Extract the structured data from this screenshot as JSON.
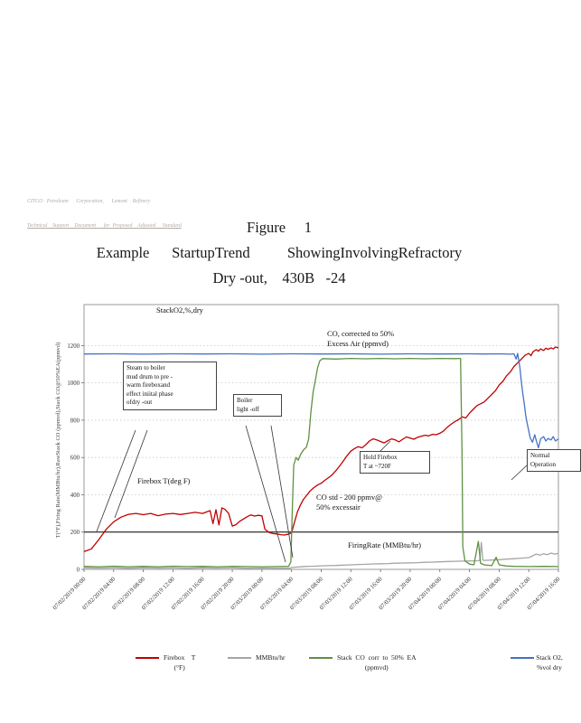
{
  "doc_header": {
    "line1": "CITGO   Petroleum      Corporation,      Lemont    Refinery",
    "line2": "Technical    Support    Document      for  Proposed    Adjusted     Standard"
  },
  "title": {
    "line1": "Figure     1",
    "line2": "Example      StartupTrend          ShowingInvolvingRefractory",
    "line3": "Dry -out,    430B   -24"
  },
  "plot_labels": {
    "stack_o2": "StackO2,%,dry",
    "co_corrected": "CO, corrected     to  50%\nExcess   Air  (ppmvd)",
    "firebox": "Firebox     T(deg   F)",
    "co_std": "CO  std  - 200    ppmv@\n50%   excessair",
    "firing_rate": "FiringRate     (MMBtu/hr)"
  },
  "annotations": {
    "steam_note": "Steam    to boiler\nmud   drum    to pre -\nwarm    fireboxand\neffect    iniital   phase\nofdry   -out",
    "boiler_note": "Boiler\nlight -off",
    "hold_note": "Hold   Firebox\nT at   ~720F",
    "normal_note": "Normal\nOperation"
  },
  "legend": {
    "items": [
      {
        "label": "Firebox    T",
        "sublabel": "(°F)",
        "color": "#C00000"
      },
      {
        "label": "MMBtu/hr",
        "sublabel": "",
        "color": "#A5A5A5"
      },
      {
        "label": "Stack  CO  corr  to  50%  EA",
        "sublabel": "(ppmvd)",
        "color": "#5F9141"
      },
      {
        "label": "Stack O2,",
        "sublabel": "%vol dry",
        "color": "#4472C4"
      }
    ]
  },
  "chart_data": {
    "type": "line",
    "title": "Example Startup Trend Showing Involving Refractory Dry-out, 430B-24",
    "grid": true,
    "legend_position": "bottom",
    "x_axis": {
      "hours": [
        0,
        4,
        8,
        12,
        16,
        20,
        24,
        28,
        32,
        36,
        40,
        44,
        48,
        52,
        56,
        60,
        64
      ],
      "ticks": [
        "07/02/2019 00:00",
        "07/02/2019 04:00",
        "07/02/2019 08:00",
        "07/02/2019 12:00",
        "07/02/2019 16:00",
        "07/02/2019 20:00",
        "07/03/2019 00:00",
        "07/03/2019 04:00",
        "07/03/2019 08:00",
        "07/03/2019 12:00",
        "07/03/2019 16:00",
        "07/03/2019 20:00",
        "07/04/2019 00:00",
        "07/04/2019 04:00",
        "07/04/2019 08:00",
        "07/04/2019 12:00",
        "07/04/2019 16:00"
      ]
    },
    "y_axis": {
      "label": "T(°F),Firing   Rate(MMBtu/hr),RawStack   CO (ppmvd),Stack   CO@50%EA(ppmvd)",
      "ticks": [
        0,
        200,
        400,
        600,
        800,
        1000,
        1200
      ],
      "range": [
        0,
        1420
      ]
    },
    "ref_lines": [
      {
        "value": 200,
        "color": "#000000",
        "label": "CO std - 200 ppmv@ 50% excess air"
      }
    ],
    "series": [
      {
        "id": "firebox-t",
        "name": "Firebox T (°F)",
        "color": "#C00000",
        "points": [
          [
            0,
            95
          ],
          [
            1,
            110
          ],
          [
            2,
            160
          ],
          [
            3,
            215
          ],
          [
            4,
            255
          ],
          [
            5,
            280
          ],
          [
            6,
            295
          ],
          [
            7,
            300
          ],
          [
            8,
            293
          ],
          [
            9,
            300
          ],
          [
            10,
            288
          ],
          [
            11,
            296
          ],
          [
            12,
            300
          ],
          [
            13,
            294
          ],
          [
            14,
            300
          ],
          [
            15,
            306
          ],
          [
            16,
            300
          ],
          [
            17,
            315
          ],
          [
            17.4,
            245
          ],
          [
            17.8,
            320
          ],
          [
            18.2,
            238
          ],
          [
            18.6,
            330
          ],
          [
            19,
            322
          ],
          [
            19.5,
            300
          ],
          [
            20,
            232
          ],
          [
            20.5,
            240
          ],
          [
            21,
            258
          ],
          [
            21.5,
            270
          ],
          [
            22,
            282
          ],
          [
            22.5,
            292
          ],
          [
            23,
            286
          ],
          [
            23.5,
            290
          ],
          [
            24,
            287
          ],
          [
            24.4,
            215
          ],
          [
            25,
            197
          ],
          [
            25.5,
            192
          ],
          [
            26,
            190
          ],
          [
            26.5,
            186
          ],
          [
            27,
            184
          ],
          [
            27.5,
            188
          ],
          [
            28,
            196
          ],
          [
            28.4,
            255
          ],
          [
            28.8,
            310
          ],
          [
            29.2,
            345
          ],
          [
            29.6,
            375
          ],
          [
            30,
            395
          ],
          [
            30.5,
            420
          ],
          [
            31,
            438
          ],
          [
            31.5,
            452
          ],
          [
            32,
            462
          ],
          [
            32.5,
            478
          ],
          [
            33,
            492
          ],
          [
            33.5,
            508
          ],
          [
            34,
            530
          ],
          [
            34.5,
            555
          ],
          [
            35,
            582
          ],
          [
            35.5,
            610
          ],
          [
            36,
            634
          ],
          [
            36.5,
            648
          ],
          [
            37,
            658
          ],
          [
            37.5,
            652
          ],
          [
            38,
            668
          ],
          [
            38.5,
            688
          ],
          [
            39,
            700
          ],
          [
            39.5,
            694
          ],
          [
            40,
            686
          ],
          [
            40.5,
            678
          ],
          [
            41,
            690
          ],
          [
            41.5,
            700
          ],
          [
            42,
            694
          ],
          [
            42.5,
            684
          ],
          [
            43,
            698
          ],
          [
            43.5,
            710
          ],
          [
            44,
            704
          ],
          [
            44.5,
            698
          ],
          [
            45,
            708
          ],
          [
            45.5,
            714
          ],
          [
            46,
            719
          ],
          [
            46.5,
            716
          ],
          [
            47,
            724
          ],
          [
            47.5,
            722
          ],
          [
            48,
            730
          ],
          [
            48.5,
            742
          ],
          [
            49,
            762
          ],
          [
            49.5,
            778
          ],
          [
            50,
            792
          ],
          [
            50.5,
            802
          ],
          [
            51,
            818
          ],
          [
            51.5,
            812
          ],
          [
            52,
            838
          ],
          [
            52.5,
            858
          ],
          [
            53,
            878
          ],
          [
            53.5,
            888
          ],
          [
            54,
            898
          ],
          [
            54.5,
            918
          ],
          [
            55,
            938
          ],
          [
            55.5,
            958
          ],
          [
            56,
            988
          ],
          [
            56.5,
            1008
          ],
          [
            57,
            1038
          ],
          [
            57.5,
            1058
          ],
          [
            58,
            1088
          ],
          [
            58.5,
            1108
          ],
          [
            59,
            1128
          ],
          [
            59.5,
            1148
          ],
          [
            60,
            1158
          ],
          [
            60.3,
            1146
          ],
          [
            60.6,
            1168
          ],
          [
            61,
            1178
          ],
          [
            61.3,
            1170
          ],
          [
            61.6,
            1182
          ],
          [
            62,
            1174
          ],
          [
            62.3,
            1186
          ],
          [
            62.6,
            1180
          ],
          [
            63,
            1188
          ],
          [
            63.3,
            1182
          ],
          [
            63.6,
            1192
          ],
          [
            64,
            1188
          ]
        ]
      },
      {
        "id": "firing-rate",
        "name": "MMBtu/hr",
        "color": "#A5A5A5",
        "points": [
          [
            0,
            8
          ],
          [
            2,
            7
          ],
          [
            4,
            8
          ],
          [
            6,
            6
          ],
          [
            8,
            8
          ],
          [
            10,
            7
          ],
          [
            12,
            8
          ],
          [
            14,
            6
          ],
          [
            16,
            8
          ],
          [
            18,
            7
          ],
          [
            20,
            8
          ],
          [
            22,
            6
          ],
          [
            24,
            7
          ],
          [
            26,
            6
          ],
          [
            27.8,
            6
          ],
          [
            28,
            10
          ],
          [
            29,
            13
          ],
          [
            30,
            16
          ],
          [
            31,
            17
          ],
          [
            32,
            19
          ],
          [
            33,
            20
          ],
          [
            34,
            21
          ],
          [
            35,
            23
          ],
          [
            36,
            24
          ],
          [
            37,
            26
          ],
          [
            38,
            27
          ],
          [
            39,
            29
          ],
          [
            40,
            30
          ],
          [
            41,
            31
          ],
          [
            42,
            33
          ],
          [
            43,
            34
          ],
          [
            44,
            35
          ],
          [
            45,
            36
          ],
          [
            46,
            38
          ],
          [
            47,
            39
          ],
          [
            48,
            40
          ],
          [
            49,
            42
          ],
          [
            50,
            43
          ],
          [
            51,
            44
          ],
          [
            52,
            45
          ],
          [
            53,
            46
          ],
          [
            53.4,
            48
          ],
          [
            53.6,
            145
          ],
          [
            53.8,
            50
          ],
          [
            54,
            48
          ],
          [
            55,
            50
          ],
          [
            56,
            52
          ],
          [
            57,
            55
          ],
          [
            58,
            57
          ],
          [
            59,
            60
          ],
          [
            60,
            63
          ],
          [
            60.5,
            72
          ],
          [
            61,
            82
          ],
          [
            61.5,
            76
          ],
          [
            62,
            84
          ],
          [
            62.5,
            79
          ],
          [
            63,
            87
          ],
          [
            63.5,
            82
          ],
          [
            64,
            86
          ]
        ]
      },
      {
        "id": "stack-co",
        "name": "Stack CO corr to 50% EA (ppmvd)",
        "color": "#5F9141",
        "points": [
          [
            0,
            16
          ],
          [
            2,
            14
          ],
          [
            4,
            17
          ],
          [
            6,
            14
          ],
          [
            8,
            16
          ],
          [
            10,
            14
          ],
          [
            12,
            17
          ],
          [
            14,
            15
          ],
          [
            16,
            16
          ],
          [
            18,
            14
          ],
          [
            20,
            16
          ],
          [
            22,
            15
          ],
          [
            24,
            14
          ],
          [
            26,
            15
          ],
          [
            27.6,
            16
          ],
          [
            27.9,
            40
          ],
          [
            28.1,
            320
          ],
          [
            28.3,
            560
          ],
          [
            28.6,
            600
          ],
          [
            28.9,
            585
          ],
          [
            29.2,
            615
          ],
          [
            29.6,
            640
          ],
          [
            30,
            655
          ],
          [
            30.3,
            700
          ],
          [
            30.6,
            840
          ],
          [
            30.9,
            950
          ],
          [
            31.2,
            1010
          ],
          [
            31.5,
            1080
          ],
          [
            31.8,
            1118
          ],
          [
            32.2,
            1130
          ],
          [
            34,
            1128
          ],
          [
            36,
            1131
          ],
          [
            38,
            1129
          ],
          [
            40,
            1131
          ],
          [
            42,
            1129
          ],
          [
            44,
            1131
          ],
          [
            46,
            1129
          ],
          [
            48,
            1131
          ],
          [
            50,
            1130
          ],
          [
            50.8,
            1131
          ],
          [
            51,
            600
          ],
          [
            51.1,
            120
          ],
          [
            51.4,
            45
          ],
          [
            52,
            28
          ],
          [
            52.6,
            24
          ],
          [
            53.2,
            150
          ],
          [
            53.5,
            32
          ],
          [
            54,
            24
          ],
          [
            55,
            20
          ],
          [
            55.6,
            65
          ],
          [
            56,
            24
          ],
          [
            57,
            18
          ],
          [
            58,
            16
          ],
          [
            60,
            15
          ],
          [
            62,
            16
          ],
          [
            64,
            15
          ]
        ]
      },
      {
        "id": "stack-o2",
        "name": "Stack O2, %vol dry",
        "color": "#4472C4",
        "points": [
          [
            0,
            1155
          ],
          [
            4,
            1156
          ],
          [
            8,
            1154
          ],
          [
            12,
            1156
          ],
          [
            16,
            1155
          ],
          [
            20,
            1156
          ],
          [
            24,
            1154
          ],
          [
            28,
            1156
          ],
          [
            32,
            1155
          ],
          [
            36,
            1156
          ],
          [
            40,
            1154
          ],
          [
            44,
            1156
          ],
          [
            48,
            1155
          ],
          [
            52,
            1156
          ],
          [
            54,
            1155
          ],
          [
            56,
            1156
          ],
          [
            57.5,
            1154
          ],
          [
            58,
            1156
          ],
          [
            58.3,
            1128
          ],
          [
            58.5,
            1158
          ],
          [
            58.8,
            1085
          ],
          [
            59,
            1005
          ],
          [
            59.2,
            942
          ],
          [
            59.4,
            885
          ],
          [
            59.6,
            822
          ],
          [
            59.8,
            782
          ],
          [
            60,
            742
          ],
          [
            60.2,
            705
          ],
          [
            60.5,
            682
          ],
          [
            60.8,
            722
          ],
          [
            61,
            692
          ],
          [
            61.3,
            652
          ],
          [
            61.6,
            700
          ],
          [
            62,
            712
          ],
          [
            62.3,
            688
          ],
          [
            62.6,
            702
          ],
          [
            63,
            694
          ],
          [
            63.3,
            712
          ],
          [
            63.6,
            688
          ],
          [
            64,
            700
          ]
        ]
      }
    ]
  }
}
